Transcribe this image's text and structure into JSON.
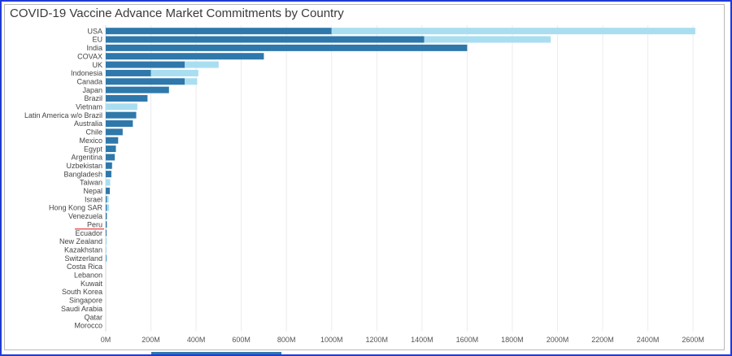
{
  "title": "COVID-19 Vaccine Advance Market Commitments by Country",
  "colors": {
    "dark_series": "#2e78ab",
    "light_series": "#a9def0",
    "frame_border": "#1f3bd6",
    "peru_underline": "#e04040"
  },
  "chart_data": {
    "type": "bar",
    "orientation": "horizontal",
    "stacked": true,
    "title": "COVID-19 Vaccine Advance Market Commitments by Country",
    "categories": [
      "USA",
      "EU",
      "India",
      "COVAX",
      "UK",
      "Indonesia",
      "Canada",
      "Japan",
      "Brazil",
      "Vietnam",
      "Latin America w/o Brazil",
      "Australia",
      "Chile",
      "Mexico",
      "Egypt",
      "Argentina",
      "Uzbekistan",
      "Bangladesh",
      "Taiwan",
      "Nepal",
      "Israel",
      "Hong Kong SAR",
      "Venezuela",
      "Peru",
      "Ecuador",
      "New Zealand",
      "Kazakhstan",
      "Switzerland",
      "Costa Rica",
      "Lebanon",
      "Kuwait",
      "South Korea",
      "Singapore",
      "Saudi Arabia",
      "Qatar",
      "Morocco"
    ],
    "series": [
      {
        "values": [
          1000,
          1410,
          1600,
          700,
          350,
          200,
          350,
          280,
          185,
          0,
          135,
          120,
          75,
          55,
          45,
          40,
          28,
          25,
          0,
          18,
          5,
          5,
          5,
          5,
          3,
          0,
          0,
          2,
          0,
          0,
          0,
          0,
          0,
          0,
          0,
          0
        ]
      },
      {
        "values": [
          1610,
          560,
          0,
          0,
          150,
          210,
          55,
          0,
          0,
          140,
          0,
          0,
          0,
          0,
          0,
          0,
          0,
          0,
          20,
          0,
          8,
          10,
          0,
          0,
          0,
          5,
          3,
          2,
          0,
          0,
          0,
          0,
          0,
          0,
          0,
          0
        ]
      }
    ],
    "xlim": [
      0,
      2650
    ],
    "x_ticks": [
      "0M",
      "200M",
      "400M",
      "600M",
      "800M",
      "1000M",
      "1200M",
      "1400M",
      "1600M",
      "1800M",
      "2000M",
      "2200M",
      "2400M",
      "2600M"
    ],
    "x_tick_values": [
      0,
      200,
      400,
      600,
      800,
      1000,
      1200,
      1400,
      1600,
      1800,
      2000,
      2200,
      2400,
      2600
    ],
    "highlighted_category": "Peru",
    "grid": "vertical"
  }
}
